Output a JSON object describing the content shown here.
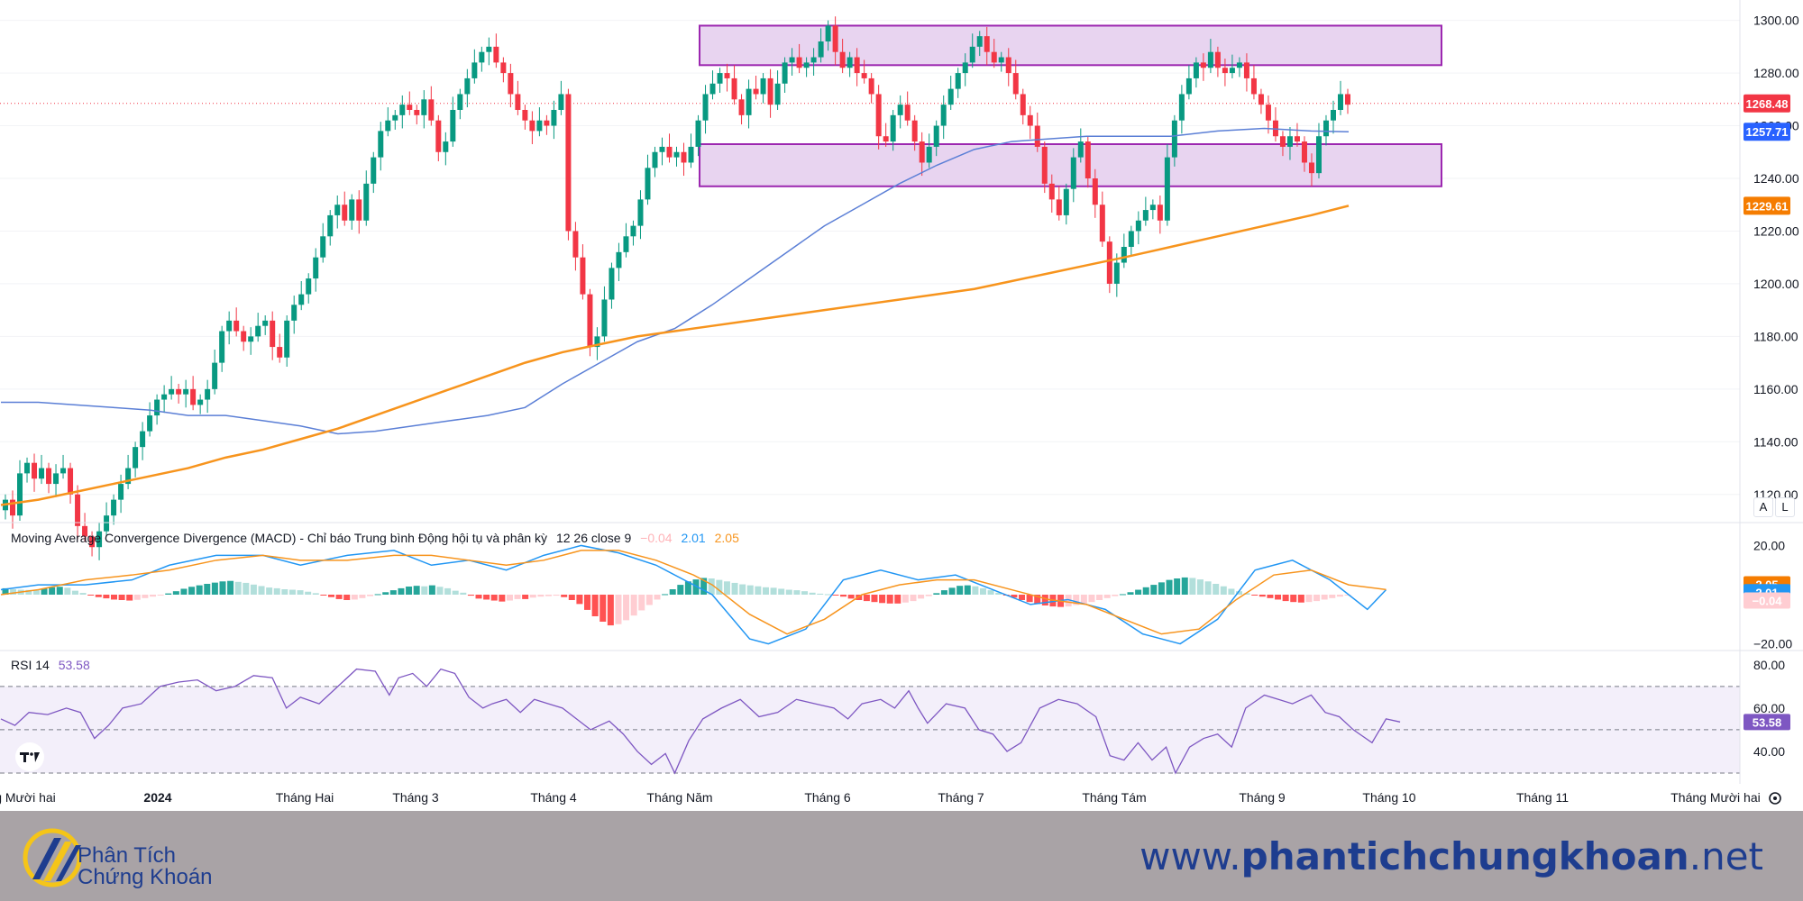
{
  "chart_data": [
    {
      "type": "candlestick",
      "pane": "price",
      "y_ticks": [
        "1300.00",
        "1280.00",
        "1260.00",
        "1240.00",
        "1220.00",
        "1200.00",
        "1180.00",
        "1160.00",
        "1140.00",
        "1120.00"
      ],
      "ylim": [
        1110,
        1305
      ],
      "time_labels": [
        "g Mười hai",
        "2024",
        "Tháng Hai",
        "Tháng 3",
        "Tháng 4",
        "Tháng Năm",
        "Tháng 6",
        "Tháng 7",
        "Tháng Tám",
        "Tháng 9",
        "Tháng 10",
        "Tháng 11",
        "Tháng Mười hai"
      ],
      "closes": [
        1118,
        1112,
        1128,
        1132,
        1126,
        1130,
        1124,
        1128,
        1130,
        1120,
        1108,
        1104,
        1100,
        1106,
        1112,
        1118,
        1124,
        1130,
        1138,
        1144,
        1150,
        1156,
        1158,
        1160,
        1158,
        1160,
        1154,
        1156,
        1160,
        1170,
        1182,
        1186,
        1182,
        1178,
        1180,
        1184,
        1186,
        1176,
        1172,
        1186,
        1192,
        1196,
        1202,
        1210,
        1218,
        1226,
        1230,
        1224,
        1232,
        1224,
        1238,
        1248,
        1258,
        1262,
        1264,
        1268,
        1266,
        1264,
        1270,
        1262,
        1250,
        1254,
        1266,
        1272,
        1278,
        1284,
        1288,
        1290,
        1284,
        1280,
        1272,
        1266,
        1262,
        1258,
        1262,
        1260,
        1266,
        1272,
        1220,
        1210,
        1196,
        1176,
        1180,
        1194,
        1206,
        1212,
        1218,
        1222,
        1232,
        1244,
        1250,
        1252,
        1248,
        1250,
        1246,
        1252,
        1262,
        1272,
        1276,
        1280,
        1278,
        1270,
        1264,
        1274,
        1272,
        1278,
        1268,
        1276,
        1284,
        1286,
        1282,
        1284,
        1286,
        1292,
        1298,
        1288,
        1282,
        1286,
        1280,
        1278,
        1272,
        1256,
        1254,
        1264,
        1268,
        1262,
        1254,
        1246,
        1252,
        1260,
        1268,
        1274,
        1280,
        1284,
        1290,
        1294,
        1288,
        1284,
        1286,
        1280,
        1272,
        1264,
        1260,
        1252,
        1238,
        1232,
        1226,
        1236,
        1248,
        1254,
        1240,
        1230,
        1216,
        1200,
        1208,
        1214,
        1220,
        1224,
        1228,
        1230,
        1224,
        1248,
        1262,
        1272,
        1278,
        1284,
        1282,
        1288,
        1282,
        1280,
        1282,
        1284,
        1278,
        1272,
        1268,
        1262,
        1256,
        1252,
        1256,
        1254,
        1246,
        1242,
        1256,
        1262,
        1266,
        1272,
        1268
      ],
      "ma_blue": [
        [
          0,
          1155
        ],
        [
          40,
          1155
        ],
        [
          80,
          1154
        ],
        [
          120,
          1153
        ],
        [
          160,
          1152
        ],
        [
          200,
          1150
        ],
        [
          240,
          1150
        ],
        [
          280,
          1148
        ],
        [
          320,
          1146
        ],
        [
          360,
          1143
        ],
        [
          400,
          1144
        ],
        [
          440,
          1146
        ],
        [
          480,
          1148
        ],
        [
          520,
          1150
        ],
        [
          560,
          1153
        ],
        [
          600,
          1162
        ],
        [
          640,
          1170
        ],
        [
          680,
          1178
        ],
        [
          720,
          1183
        ],
        [
          760,
          1192
        ],
        [
          800,
          1202
        ],
        [
          840,
          1212
        ],
        [
          880,
          1222
        ],
        [
          920,
          1230
        ],
        [
          960,
          1238
        ],
        [
          1000,
          1245
        ],
        [
          1040,
          1251
        ],
        [
          1080,
          1254
        ],
        [
          1120,
          1255
        ],
        [
          1160,
          1256
        ],
        [
          1200,
          1256
        ],
        [
          1250,
          1256
        ],
        [
          1300,
          1258
        ],
        [
          1350,
          1259
        ],
        [
          1400,
          1258
        ],
        [
          1440,
          1257.71
        ]
      ],
      "ma_orange": [
        [
          0,
          1116
        ],
        [
          40,
          1118
        ],
        [
          80,
          1121
        ],
        [
          120,
          1124
        ],
        [
          160,
          1127
        ],
        [
          200,
          1130
        ],
        [
          240,
          1134
        ],
        [
          280,
          1137
        ],
        [
          320,
          1141
        ],
        [
          360,
          1145
        ],
        [
          400,
          1150
        ],
        [
          440,
          1155
        ],
        [
          480,
          1160
        ],
        [
          520,
          1165
        ],
        [
          560,
          1170
        ],
        [
          600,
          1174
        ],
        [
          640,
          1177
        ],
        [
          680,
          1180
        ],
        [
          720,
          1182
        ],
        [
          760,
          1184
        ],
        [
          800,
          1186
        ],
        [
          840,
          1188
        ],
        [
          880,
          1190
        ],
        [
          920,
          1192
        ],
        [
          960,
          1194
        ],
        [
          1000,
          1196
        ],
        [
          1040,
          1198
        ],
        [
          1080,
          1201
        ],
        [
          1120,
          1204
        ],
        [
          1160,
          1207
        ],
        [
          1200,
          1210
        ],
        [
          1250,
          1214
        ],
        [
          1300,
          1218
        ],
        [
          1350,
          1222
        ],
        [
          1400,
          1226
        ],
        [
          1440,
          1229.61
        ]
      ],
      "zones": [
        [
          1283,
          1298
        ],
        [
          1237,
          1253
        ]
      ],
      "last_price": "1268.48",
      "last_blue": "1257.71",
      "last_orange": "1229.61",
      "colors": {
        "up": "#089981",
        "down": "#f23645",
        "ma_blue": "#5b7fd6",
        "ma_orange": "#f7941d",
        "zone_fill": "#e8d4f0",
        "zone_border": "#9c27b0"
      }
    },
    {
      "type": "macd",
      "pane": "macd",
      "title": "Moving Average Convergence Divergence (MACD) - Chỉ báo Trung bình Động hội tụ và phân kỳ",
      "params": "12 26 close 9",
      "hist_value": "−0.04",
      "macd_value": "2.01",
      "signal_value": "2.05",
      "y_ticks": [
        "20.00",
        "−20.00"
      ],
      "ylim": [
        -22,
        22
      ],
      "tags": [
        "2.05",
        "2.01",
        "−0.04"
      ],
      "histogram": [
        2.6,
        2.2,
        2.0,
        1.9,
        1.8,
        2.5,
        3.0,
        3.2,
        2.8,
        1.6,
        0.7,
        -0.2,
        -1.0,
        -1.5,
        -2.0,
        -2.2,
        -2.4,
        -2.1,
        -1.4,
        -0.8,
        -0.2,
        0.5,
        1.4,
        2.4,
        3.2,
        3.8,
        4.4,
        4.9,
        5.4,
        5.6,
        5.2,
        4.8,
        4.1,
        3.5,
        2.9,
        2.6,
        2.2,
        2.0,
        1.8,
        1.2,
        0.6,
        -0.2,
        -1.0,
        -1.8,
        -2.2,
        -2.0,
        -1.4,
        -0.6,
        0.2,
        1.0,
        1.8,
        2.6,
        3.3,
        3.6,
        3.4,
        3.8,
        3.2,
        2.6,
        1.6,
        0.8,
        -0.4,
        -1.6,
        -2.0,
        -2.4,
        -2.8,
        -2.4,
        -1.8,
        -1.8,
        -1.2,
        -0.8,
        -0.6,
        -0.4,
        -1.0,
        -2.2,
        -3.8,
        -6.2,
        -8.8,
        -11.0,
        -12.5,
        -12.0,
        -10.4,
        -8.5,
        -6.4,
        -4.2,
        -2.0,
        0.2,
        2.2,
        4.0,
        5.4,
        6.2,
        6.8,
        6.6,
        6.0,
        5.4,
        4.8,
        4.2,
        3.8,
        3.4,
        3.0,
        2.8,
        2.4,
        2.0,
        1.8,
        1.4,
        0.8,
        0.4,
        0.2,
        -0.2,
        -0.8,
        -1.6,
        -2.2,
        -2.6,
        -3.0,
        -3.4,
        -3.6,
        -3.6,
        -3.2,
        -2.6,
        -1.6,
        -0.6,
        0.6,
        1.8,
        2.8,
        3.6,
        3.8,
        3.4,
        2.6,
        1.8,
        0.8,
        -0.2,
        -1.2,
        -2.2,
        -3.0,
        -3.8,
        -4.4,
        -4.8,
        -5.0,
        -4.8,
        -4.2,
        -3.6,
        -3.0,
        -2.2,
        -1.4,
        -0.6,
        0.2,
        1.0,
        2.0,
        3.0,
        4.0,
        5.0,
        6.0,
        6.6,
        7.0,
        6.8,
        6.2,
        5.4,
        4.4,
        3.4,
        2.4,
        1.4,
        0.6,
        -0.2,
        -0.8,
        -1.4,
        -2.0,
        -2.6,
        -3.0,
        -3.2,
        -3.0,
        -2.6,
        -2.0,
        -1.4,
        -0.8,
        -0.04
      ],
      "macd_line": [
        [
          0,
          2
        ],
        [
          40,
          4
        ],
        [
          90,
          4
        ],
        [
          140,
          6
        ],
        [
          180,
          12
        ],
        [
          230,
          16
        ],
        [
          280,
          16
        ],
        [
          320,
          12
        ],
        [
          370,
          16
        ],
        [
          420,
          18
        ],
        [
          460,
          12
        ],
        [
          500,
          14
        ],
        [
          540,
          10
        ],
        [
          580,
          16
        ],
        [
          620,
          20
        ],
        [
          660,
          17
        ],
        [
          700,
          12
        ],
        [
          740,
          4
        ],
        [
          760,
          0
        ],
        [
          800,
          -18
        ],
        [
          820,
          -20
        ],
        [
          860,
          -14
        ],
        [
          900,
          6
        ],
        [
          940,
          10
        ],
        [
          980,
          6
        ],
        [
          1020,
          8
        ],
        [
          1060,
          2
        ],
        [
          1100,
          -4
        ],
        [
          1140,
          -2
        ],
        [
          1180,
          -6
        ],
        [
          1220,
          -16
        ],
        [
          1260,
          -20
        ],
        [
          1300,
          -10
        ],
        [
          1340,
          10
        ],
        [
          1380,
          14
        ],
        [
          1420,
          6
        ],
        [
          1460,
          -6
        ],
        [
          1480,
          2.01
        ]
      ],
      "signal_line": [
        [
          0,
          0
        ],
        [
          40,
          2
        ],
        [
          90,
          6
        ],
        [
          140,
          8
        ],
        [
          180,
          10
        ],
        [
          230,
          14
        ],
        [
          280,
          16
        ],
        [
          320,
          14
        ],
        [
          370,
          14
        ],
        [
          420,
          16
        ],
        [
          460,
          16
        ],
        [
          500,
          14
        ],
        [
          540,
          12
        ],
        [
          580,
          14
        ],
        [
          620,
          18
        ],
        [
          660,
          18
        ],
        [
          700,
          14
        ],
        [
          740,
          8
        ],
        [
          760,
          4
        ],
        [
          800,
          -8
        ],
        [
          840,
          -16
        ],
        [
          880,
          -10
        ],
        [
          920,
          0
        ],
        [
          960,
          4
        ],
        [
          1000,
          6
        ],
        [
          1040,
          6
        ],
        [
          1080,
          2
        ],
        [
          1120,
          -2
        ],
        [
          1160,
          -4
        ],
        [
          1200,
          -10
        ],
        [
          1240,
          -16
        ],
        [
          1280,
          -14
        ],
        [
          1320,
          -2
        ],
        [
          1360,
          8
        ],
        [
          1400,
          10
        ],
        [
          1440,
          4
        ],
        [
          1480,
          2.05
        ]
      ],
      "colors": {
        "macd": "#2196f3",
        "signal": "#f7941d",
        "hist_up_strong": "#26a69a",
        "hist_up_weak": "#b2dfdb",
        "hist_down_strong": "#ff5252",
        "hist_down_weak": "#ffcdd2"
      }
    },
    {
      "type": "line",
      "pane": "rsi",
      "title": "RSI 14",
      "value": "53.58",
      "y_ticks": [
        "80.00",
        "60.00",
        "40.00"
      ],
      "ylim": [
        30,
        82
      ],
      "bands": [
        70,
        50,
        30
      ],
      "rsi": [
        [
          0,
          55
        ],
        [
          15,
          52
        ],
        [
          30,
          58
        ],
        [
          50,
          57
        ],
        [
          70,
          60
        ],
        [
          85,
          58
        ],
        [
          100,
          46
        ],
        [
          115,
          52
        ],
        [
          130,
          60
        ],
        [
          150,
          62
        ],
        [
          170,
          70
        ],
        [
          190,
          72
        ],
        [
          210,
          73
        ],
        [
          230,
          68
        ],
        [
          250,
          70
        ],
        [
          270,
          75
        ],
        [
          290,
          74
        ],
        [
          305,
          60
        ],
        [
          320,
          65
        ],
        [
          340,
          62
        ],
        [
          360,
          70
        ],
        [
          380,
          78
        ],
        [
          400,
          77
        ],
        [
          415,
          66
        ],
        [
          425,
          74
        ],
        [
          440,
          76
        ],
        [
          455,
          70
        ],
        [
          470,
          78
        ],
        [
          485,
          76
        ],
        [
          500,
          65
        ],
        [
          515,
          60
        ],
        [
          525,
          62
        ],
        [
          540,
          64
        ],
        [
          555,
          58
        ],
        [
          570,
          64
        ],
        [
          585,
          62
        ],
        [
          600,
          60
        ],
        [
          615,
          55
        ],
        [
          630,
          50
        ],
        [
          650,
          54
        ],
        [
          665,
          48
        ],
        [
          680,
          40
        ],
        [
          695,
          34
        ],
        [
          710,
          39
        ],
        [
          720,
          30
        ],
        [
          735,
          45
        ],
        [
          750,
          55
        ],
        [
          770,
          60
        ],
        [
          790,
          64
        ],
        [
          810,
          56
        ],
        [
          830,
          58
        ],
        [
          850,
          64
        ],
        [
          870,
          62
        ],
        [
          890,
          60
        ],
        [
          905,
          55
        ],
        [
          920,
          62
        ],
        [
          940,
          64
        ],
        [
          955,
          60
        ],
        [
          970,
          68
        ],
        [
          980,
          60
        ],
        [
          990,
          53
        ],
        [
          1010,
          62
        ],
        [
          1030,
          60
        ],
        [
          1045,
          50
        ],
        [
          1060,
          48
        ],
        [
          1075,
          40
        ],
        [
          1090,
          44
        ],
        [
          1110,
          60
        ],
        [
          1130,
          64
        ],
        [
          1150,
          62
        ],
        [
          1170,
          56
        ],
        [
          1185,
          38
        ],
        [
          1200,
          36
        ],
        [
          1215,
          44
        ],
        [
          1230,
          36
        ],
        [
          1245,
          42
        ],
        [
          1255,
          30
        ],
        [
          1270,
          42
        ],
        [
          1285,
          46
        ],
        [
          1300,
          48
        ],
        [
          1315,
          42
        ],
        [
          1330,
          60
        ],
        [
          1350,
          66
        ],
        [
          1365,
          64
        ],
        [
          1380,
          62
        ],
        [
          1400,
          66
        ],
        [
          1415,
          58
        ],
        [
          1430,
          56
        ],
        [
          1445,
          50
        ],
        [
          1455,
          47
        ],
        [
          1465,
          44
        ],
        [
          1480,
          55
        ],
        [
          1495,
          53.58
        ]
      ],
      "colors": {
        "line": "#7e57c2",
        "band_fill": "#f3effa",
        "band_line": "#787b86",
        "tag": "#7e57c2"
      }
    }
  ],
  "toolbar": {
    "btn_a": "A",
    "btn_l": "L"
  },
  "footer": {
    "logo_line1": "Phân Tích",
    "logo_line2": "Chứng Khoán",
    "site_prefix": "www.",
    "site_bold": "phantichchungkhoan",
    "site_suffix": ".net"
  }
}
